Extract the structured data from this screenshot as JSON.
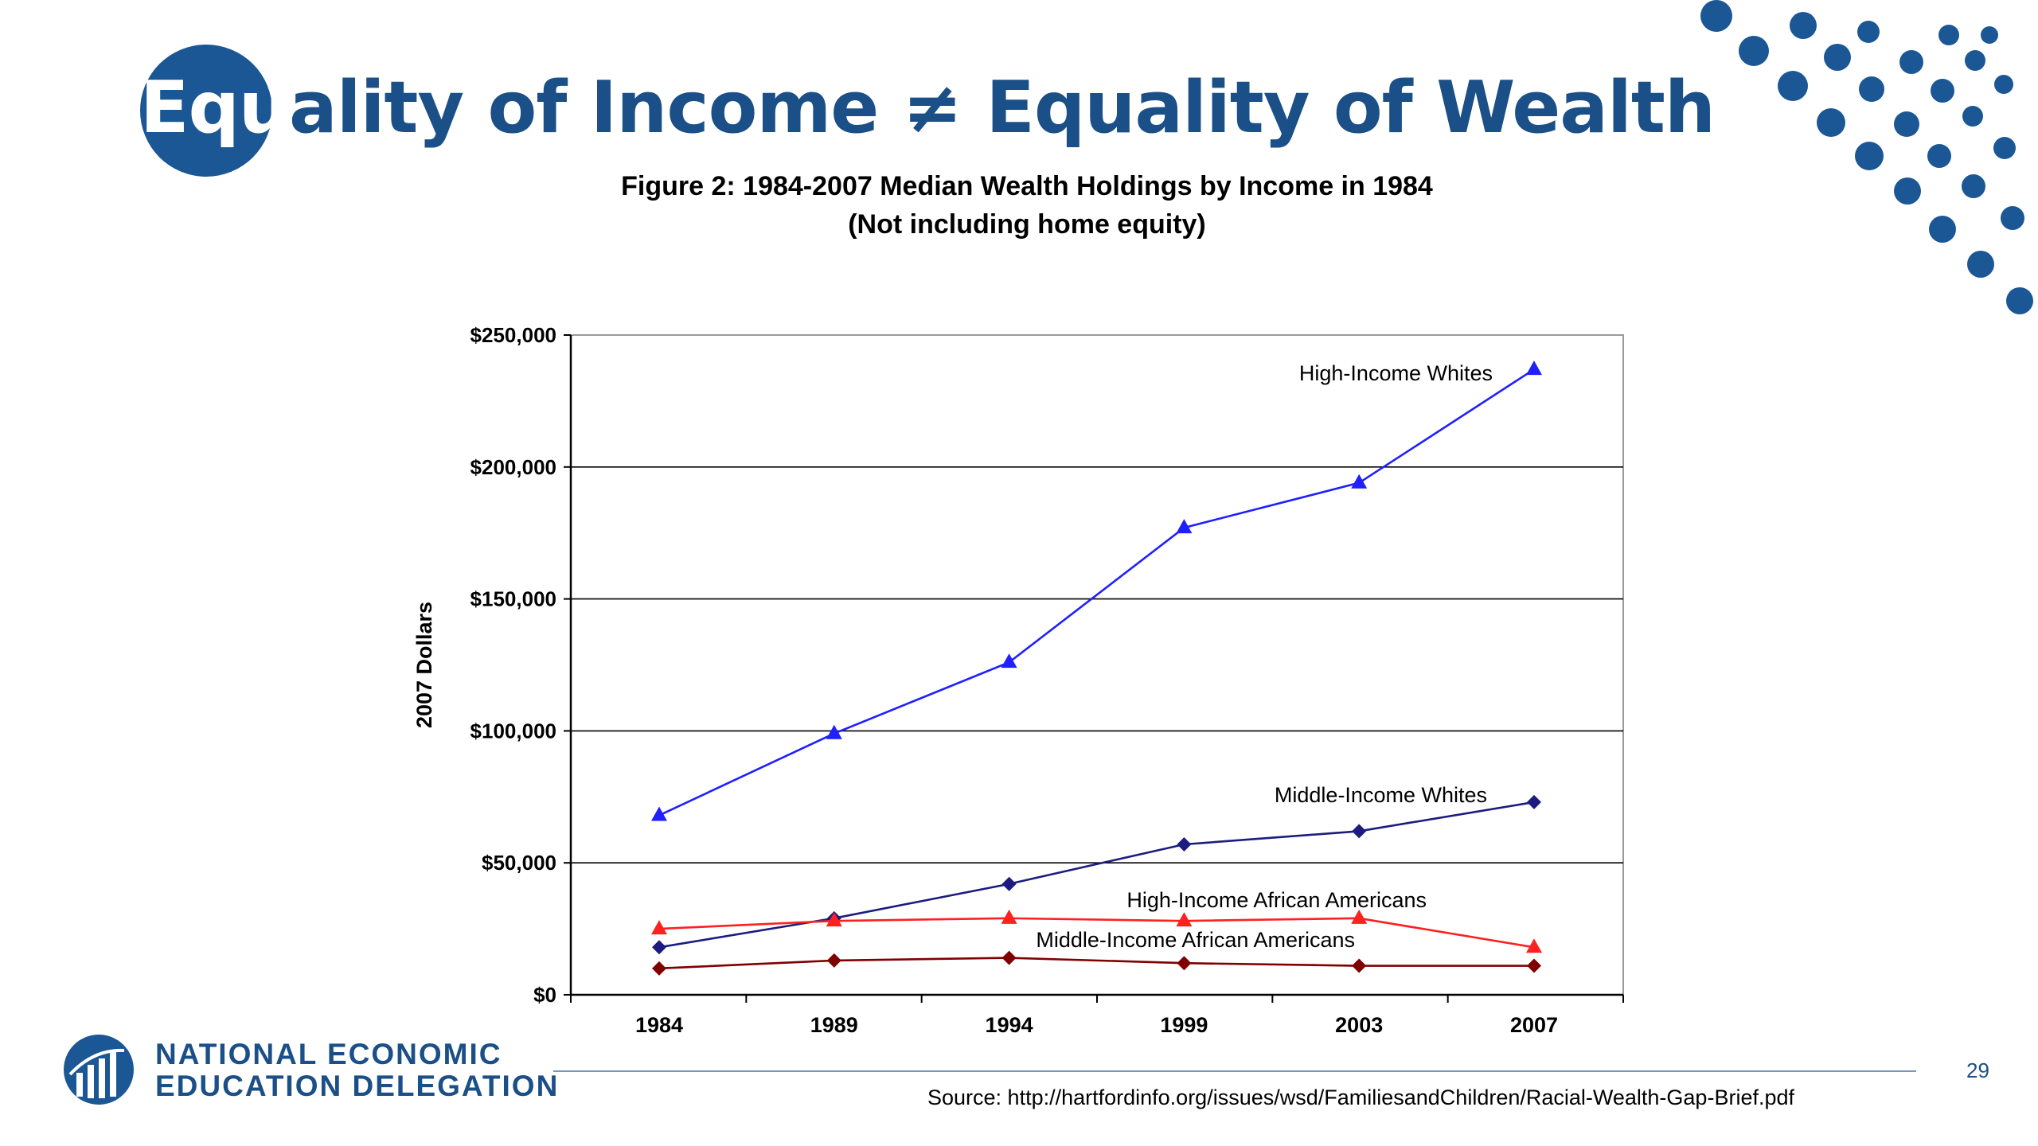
{
  "slide": {
    "title": {
      "in_circle": "Equ",
      "rest": "ality of Income ≠ Equality of Wealth"
    },
    "page_number": "29",
    "source": "Source: http://hartfordinfo.org/issues/wsd/FamiliesandChildren/Racial-Wealth-Gap-Brief.pdf"
  },
  "branding": {
    "org_line1": "NATIONAL ECONOMIC",
    "org_line2": "EDUCATION DELEGATION",
    "logo_icon": "bar-chart-globe-icon",
    "decoration": "dot-pattern",
    "accent_color": "#1b5795"
  },
  "chart_data": {
    "type": "line",
    "title": "Figure 2: 1984-2007 Median Wealth Holdings by Income  in 1984",
    "subtitle": "(Not including home equity)",
    "xlabel": "",
    "ylabel": "2007 Dollars",
    "categories": [
      "1984",
      "1989",
      "1994",
      "1999",
      "2003",
      "2007"
    ],
    "ylim": [
      0,
      250000
    ],
    "yticks": [
      0,
      50000,
      100000,
      150000,
      200000,
      250000
    ],
    "ytick_labels": [
      "$0",
      "$50,000",
      "$100,000",
      "$150,000",
      "$200,000",
      "$250,000"
    ],
    "grid": true,
    "legend": "inline labels",
    "series": [
      {
        "name": "High-Income Whites",
        "color": "#1f1fff",
        "marker": "triangle",
        "values": [
          68000,
          99000,
          126000,
          177000,
          194000,
          237000
        ]
      },
      {
        "name": "Middle-Income Whites",
        "color": "#1c1c80",
        "marker": "diamond",
        "values": [
          18000,
          29000,
          42000,
          57000,
          62000,
          73000
        ]
      },
      {
        "name": "High-Income African Americans",
        "color": "#ff2020",
        "marker": "triangle",
        "values": [
          25000,
          28000,
          29000,
          28000,
          29000,
          18000
        ]
      },
      {
        "name": "Middle-Income African Americans",
        "color": "#800000",
        "marker": "diamond",
        "values": [
          10000,
          13000,
          14000,
          12000,
          11000,
          11000
        ]
      }
    ]
  }
}
